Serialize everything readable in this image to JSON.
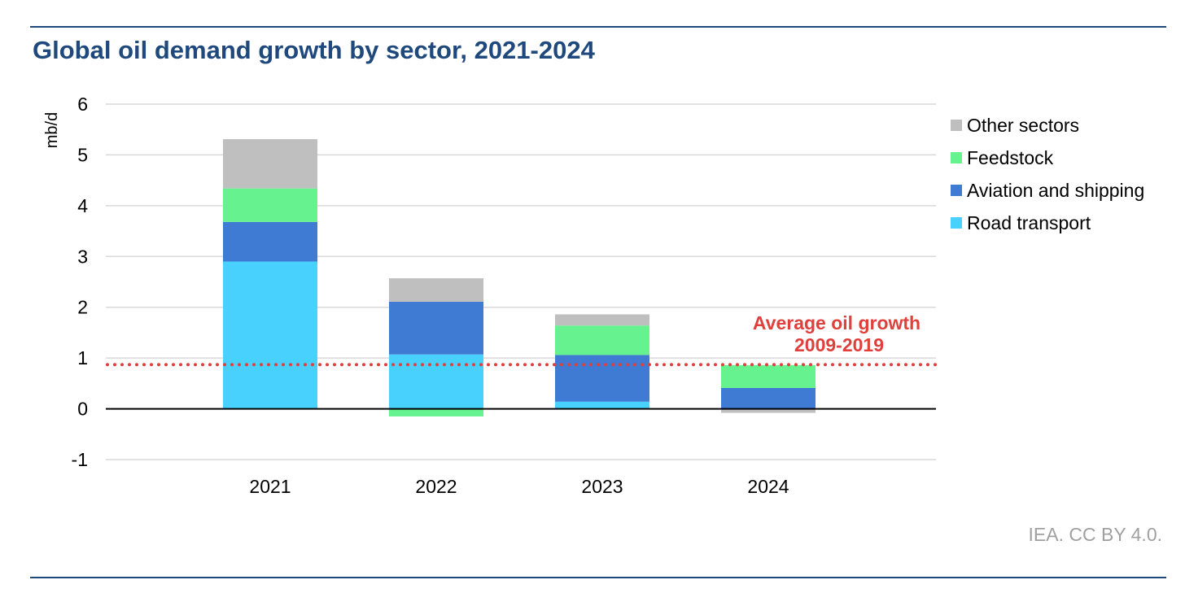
{
  "title": "Global oil demand growth by sector, 2021-2024",
  "source": "IEA. CC BY 4.0.",
  "colors": {
    "title": "#1f497d",
    "rule": "#1f497d",
    "grid": "#d9d9d9",
    "zero_line": "#000000",
    "reference": "#e0403c",
    "source": "#a0a0a0"
  },
  "chart_data": {
    "type": "bar",
    "stacked": true,
    "categories": [
      "2021",
      "2022",
      "2023",
      "2024"
    ],
    "ylabel": "mb/d",
    "xlabel": "",
    "ylim": [
      -1,
      6
    ],
    "yticks": [
      -1,
      0,
      1,
      2,
      3,
      4,
      5,
      6
    ],
    "grid": true,
    "legend_position": "right",
    "series": [
      {
        "name": "Road transport",
        "color": "#48d1fc",
        "values": [
          2.9,
          1.07,
          0.14,
          0.0
        ]
      },
      {
        "name": "Aviation and shipping",
        "color": "#3f7ad3",
        "values": [
          0.78,
          1.04,
          0.92,
          0.41
        ]
      },
      {
        "name": "Feedstock",
        "color": "#66f28f",
        "values": [
          0.66,
          -0.15,
          0.58,
          0.45
        ]
      },
      {
        "name": "Other sectors",
        "color": "#bfbfbf",
        "values": [
          0.97,
          0.46,
          0.22,
          -0.08
        ]
      }
    ],
    "reference_line": {
      "value": 0.87,
      "label_line1": "Average oil growth",
      "label_line2": "2009-2019"
    }
  }
}
